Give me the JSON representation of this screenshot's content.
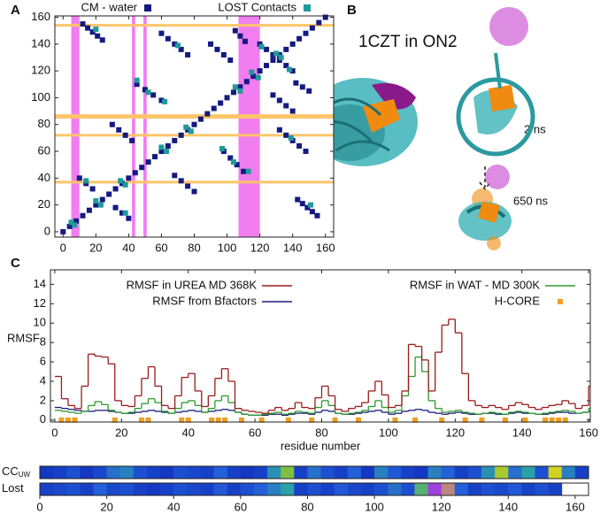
{
  "panels": [
    "A",
    "B",
    "C"
  ],
  "structure": {
    "title": "1CZT in ON2",
    "labels": [
      "2 ns",
      "650 ns"
    ]
  },
  "chart_data": [
    {
      "type": "scatter",
      "xlim": [
        -5,
        165
      ],
      "ylim": [
        -4,
        161
      ],
      "xticks": [
        0,
        20,
        40,
        60,
        80,
        100,
        120,
        140,
        160
      ],
      "yticks": [
        0,
        20,
        40,
        60,
        80,
        100,
        120,
        140,
        160
      ],
      "vbands": [
        [
          5,
          10
        ],
        [
          42,
          44
        ],
        [
          49,
          51
        ],
        [
          107,
          120
        ]
      ],
      "vband_color": "#f07ef0",
      "hlines": [
        154,
        86,
        72,
        37
      ],
      "hline_color": "#ffc56a",
      "series": [
        {
          "name": "CM - water",
          "color": "#141a80",
          "x": [
            0,
            4,
            8,
            12,
            16,
            20,
            24,
            28,
            32,
            36,
            40,
            44,
            48,
            52,
            56,
            60,
            64,
            68,
            72,
            76,
            80,
            84,
            88,
            92,
            96,
            100,
            104,
            108,
            112,
            116,
            120,
            124,
            128,
            132,
            136,
            140,
            144,
            148,
            152,
            156,
            160,
            12,
            15,
            18,
            21,
            24,
            60,
            64,
            68,
            72,
            76,
            105,
            108,
            111,
            120,
            124,
            128,
            30,
            34,
            38,
            42,
            90,
            94,
            98,
            102,
            10,
            14,
            18,
            45,
            50,
            55,
            60,
            155,
            152,
            149,
            146,
            143,
            148,
            144,
            140,
            136,
            132,
            150,
            146,
            142,
            140,
            136,
            132,
            80,
            76,
            72,
            68,
            140,
            136,
            132,
            128,
            40,
            36,
            32,
            110,
            106,
            102,
            98
          ],
          "values": [
            0,
            4,
            8,
            12,
            16,
            20,
            24,
            28,
            32,
            36,
            40,
            44,
            48,
            52,
            56,
            60,
            64,
            68,
            72,
            76,
            80,
            84,
            88,
            92,
            96,
            100,
            104,
            108,
            112,
            116,
            120,
            124,
            128,
            132,
            136,
            140,
            144,
            148,
            152,
            156,
            160,
            155,
            152,
            149,
            146,
            143,
            148,
            144,
            140,
            136,
            132,
            150,
            146,
            142,
            140,
            136,
            132,
            80,
            76,
            72,
            68,
            140,
            136,
            132,
            128,
            40,
            36,
            32,
            110,
            106,
            102,
            98,
            12,
            15,
            18,
            21,
            24,
            60,
            64,
            68,
            72,
            76,
            105,
            108,
            111,
            120,
            124,
            128,
            30,
            34,
            38,
            42,
            90,
            94,
            98,
            102,
            10,
            14,
            18,
            45,
            50,
            55,
            60
          ]
        },
        {
          "name": "LOST Contacts",
          "color": "#1f9a9a",
          "x": [
            5,
            20,
            35,
            60,
            75,
            105,
            115,
            130,
            14,
            45,
            52,
            121,
            62,
            20,
            70,
            7,
            23,
            38,
            63,
            78,
            108,
            119,
            133,
            38,
            113,
            104,
            138,
            97,
            151,
            139
          ],
          "values": [
            7,
            23,
            38,
            63,
            78,
            108,
            119,
            133,
            38,
            113,
            104,
            138,
            97,
            151,
            139,
            5,
            20,
            35,
            60,
            75,
            105,
            115,
            130,
            14,
            45,
            52,
            121,
            62,
            20,
            70
          ]
        }
      ]
    },
    {
      "type": "step",
      "xlim": [
        -1.3,
        160.5
      ],
      "ylim": [
        -0.2,
        15.5
      ],
      "xticks": [
        0,
        20,
        40,
        60,
        80,
        100,
        120,
        140,
        160
      ],
      "yticks": [
        0,
        2,
        4,
        6,
        8,
        10,
        12,
        14
      ],
      "xlabel": "residue number",
      "ylabel": "RMSF",
      "x": [
        0,
        2,
        4,
        6,
        8,
        10,
        12,
        14,
        16,
        18,
        20,
        22,
        24,
        26,
        28,
        30,
        32,
        34,
        36,
        38,
        40,
        42,
        44,
        46,
        48,
        50,
        52,
        54,
        56,
        58,
        60,
        62,
        64,
        66,
        68,
        70,
        72,
        74,
        76,
        78,
        80,
        82,
        84,
        86,
        88,
        90,
        92,
        94,
        96,
        98,
        100,
        102,
        104,
        106,
        108,
        110,
        112,
        114,
        116,
        118,
        120,
        122,
        124,
        126,
        128,
        130,
        132,
        134,
        136,
        138,
        140,
        142,
        144,
        146,
        148,
        150,
        152,
        154,
        156,
        158,
        160
      ],
      "series": [
        {
          "name": "RMSF in UREA MD 368K",
          "color": "#9b1c1c",
          "values": [
            4.5,
            2.2,
            1.5,
            1.2,
            3.5,
            6.8,
            6.6,
            6.5,
            5.8,
            2,
            1.5,
            1.4,
            2.5,
            4.3,
            5.5,
            3.5,
            1.5,
            1.2,
            2.5,
            4.4,
            4.8,
            3,
            1.4,
            2.5,
            4.3,
            5.3,
            4,
            1.2,
            1,
            0.9,
            0.8,
            0.7,
            1,
            1.3,
            1,
            1.2,
            1.8,
            1.3,
            1.2,
            2.3,
            3.5,
            2.5,
            1.1,
            0.9,
            1.2,
            1.4,
            1.8,
            3,
            4,
            2.6,
            1.3,
            1.5,
            3,
            7.8,
            7.6,
            6.2,
            3,
            7,
            9.8,
            10.4,
            9,
            4.8,
            2,
            1.5,
            1.3,
            1.5,
            1.3,
            1.1,
            1.5,
            1.8,
            1.6,
            1.3,
            1.1,
            1.3,
            1.5,
            1.6,
            2,
            1.7,
            1.2,
            1.5,
            3.5
          ]
        },
        {
          "name": "RMSF from Bfactors",
          "color": "#1a1a80",
          "values": [
            1.3,
            1.2,
            1.1,
            1,
            0.9,
            0.9,
            1,
            1,
            0.9,
            0.8,
            0.7,
            0.7,
            0.8,
            0.9,
            1,
            0.9,
            0.8,
            0.7,
            0.8,
            0.9,
            1,
            0.9,
            0.8,
            0.9,
            1,
            1.1,
            1,
            0.8,
            0.6,
            0.5,
            0.5,
            0.5,
            0.6,
            0.6,
            0.5,
            0.6,
            0.7,
            0.7,
            0.6,
            0.8,
            1,
            0.9,
            0.7,
            0.6,
            0.6,
            0.7,
            0.8,
            0.9,
            1,
            0.8,
            0.6,
            0.7,
            0.9,
            1,
            1.1,
            1,
            0.8,
            0.7,
            0.6,
            0.7,
            0.8,
            0.7,
            0.6,
            0.6,
            0.7,
            0.7,
            0.6,
            0.6,
            0.7,
            0.8,
            0.7,
            0.7,
            0.6,
            0.6,
            0.7,
            0.8,
            0.8,
            0.7,
            0.7,
            0.8,
            0.9
          ]
        },
        {
          "name": "RMSF in WAT - MD 300K",
          "color": "#2e9a2e",
          "values": [
            1,
            0.9,
            0.8,
            0.7,
            0.9,
            1.5,
            1.9,
            1.6,
            1,
            0.8,
            0.7,
            0.8,
            1.2,
            1.7,
            2.2,
            1.8,
            0.9,
            0.7,
            1.2,
            1.8,
            2,
            1.5,
            0.8,
            1.2,
            2,
            2.5,
            1.8,
            0.8,
            0.6,
            0.5,
            0.5,
            0.6,
            0.7,
            0.8,
            0.6,
            0.7,
            0.9,
            0.8,
            0.7,
            1.3,
            2,
            1.5,
            0.7,
            0.6,
            0.7,
            0.8,
            1,
            1.4,
            2,
            1.3,
            0.8,
            1,
            2.5,
            4.5,
            6.5,
            5,
            2,
            1.2,
            0.8,
            0.9,
            1,
            0.8,
            0.7,
            0.6,
            0.7,
            0.8,
            0.7,
            0.6,
            0.8,
            0.9,
            0.8,
            0.7,
            0.6,
            0.7,
            0.8,
            0.9,
            1,
            0.9,
            0.7,
            0.8,
            1.2
          ]
        },
        {
          "name": "H-CORE",
          "color": "#f0a020",
          "marker": "square",
          "x": [
            2,
            4,
            6,
            18,
            26,
            28,
            38,
            40,
            47,
            49,
            51,
            56,
            62,
            70,
            77,
            84,
            91,
            102,
            108,
            116,
            123,
            128,
            135,
            141,
            147,
            149,
            151,
            153
          ],
          "values": [
            0,
            0,
            0,
            0,
            0,
            0,
            0,
            0,
            0,
            0,
            0,
            0,
            0,
            0,
            0,
            0,
            0,
            0,
            0,
            0,
            0,
            0,
            0,
            0,
            0,
            0,
            0,
            0
          ]
        }
      ]
    },
    {
      "type": "heatmap",
      "xlim": [
        0,
        164
      ],
      "xticks": [
        0,
        20,
        40,
        60,
        80,
        100,
        120,
        140,
        160
      ],
      "bins": [
        0,
        4,
        8,
        12,
        16,
        20,
        24,
        28,
        32,
        36,
        40,
        44,
        48,
        52,
        56,
        60,
        64,
        68,
        72,
        76,
        80,
        84,
        88,
        92,
        96,
        100,
        104,
        108,
        112,
        116,
        120,
        124,
        128,
        132,
        136,
        140,
        144,
        148,
        152,
        156,
        160,
        164
      ],
      "colorscale": [
        [
          0,
          "#0a1fb8"
        ],
        [
          0.4,
          "#2460d8"
        ],
        [
          0.6,
          "#2aa0a8"
        ],
        [
          0.8,
          "#7fbf40"
        ],
        [
          0.9,
          "#d4d020"
        ],
        [
          1,
          "#a040e0"
        ]
      ],
      "rows": [
        {
          "label": "CC",
          "sub": "UW",
          "values": [
            0.15,
            0.2,
            0.3,
            0.15,
            0.25,
            0.45,
            0.5,
            0.3,
            0.2,
            0.15,
            0.3,
            0.25,
            0.2,
            0.4,
            0.2,
            0.15,
            0.2,
            0.55,
            0.8,
            0.2,
            0.45,
            0.3,
            0.2,
            0.4,
            0.15,
            0.5,
            0.35,
            0.2,
            0.15,
            0.5,
            0.4,
            0.2,
            0.3,
            0.55,
            0.85,
            0.45,
            0.6,
            0.3,
            0.9,
            0.5,
            0.2
          ]
        },
        {
          "label": "Lost",
          "values": [
            0.2,
            0.25,
            0.3,
            0.2,
            0.4,
            0.25,
            0.3,
            0.2,
            0.15,
            0.2,
            0.3,
            0.25,
            0.2,
            0.35,
            0.2,
            0.3,
            0.4,
            0.5,
            0.6,
            0.2,
            0.3,
            0.2,
            0.35,
            0.25,
            0.2,
            0.3,
            0.45,
            0.3,
            0.7,
            1,
            0.95,
            0.4,
            0.2,
            0.3,
            0.25,
            0.35,
            0.2,
            0.3,
            0.2,
            null,
            null
          ]
        }
      ]
    }
  ]
}
